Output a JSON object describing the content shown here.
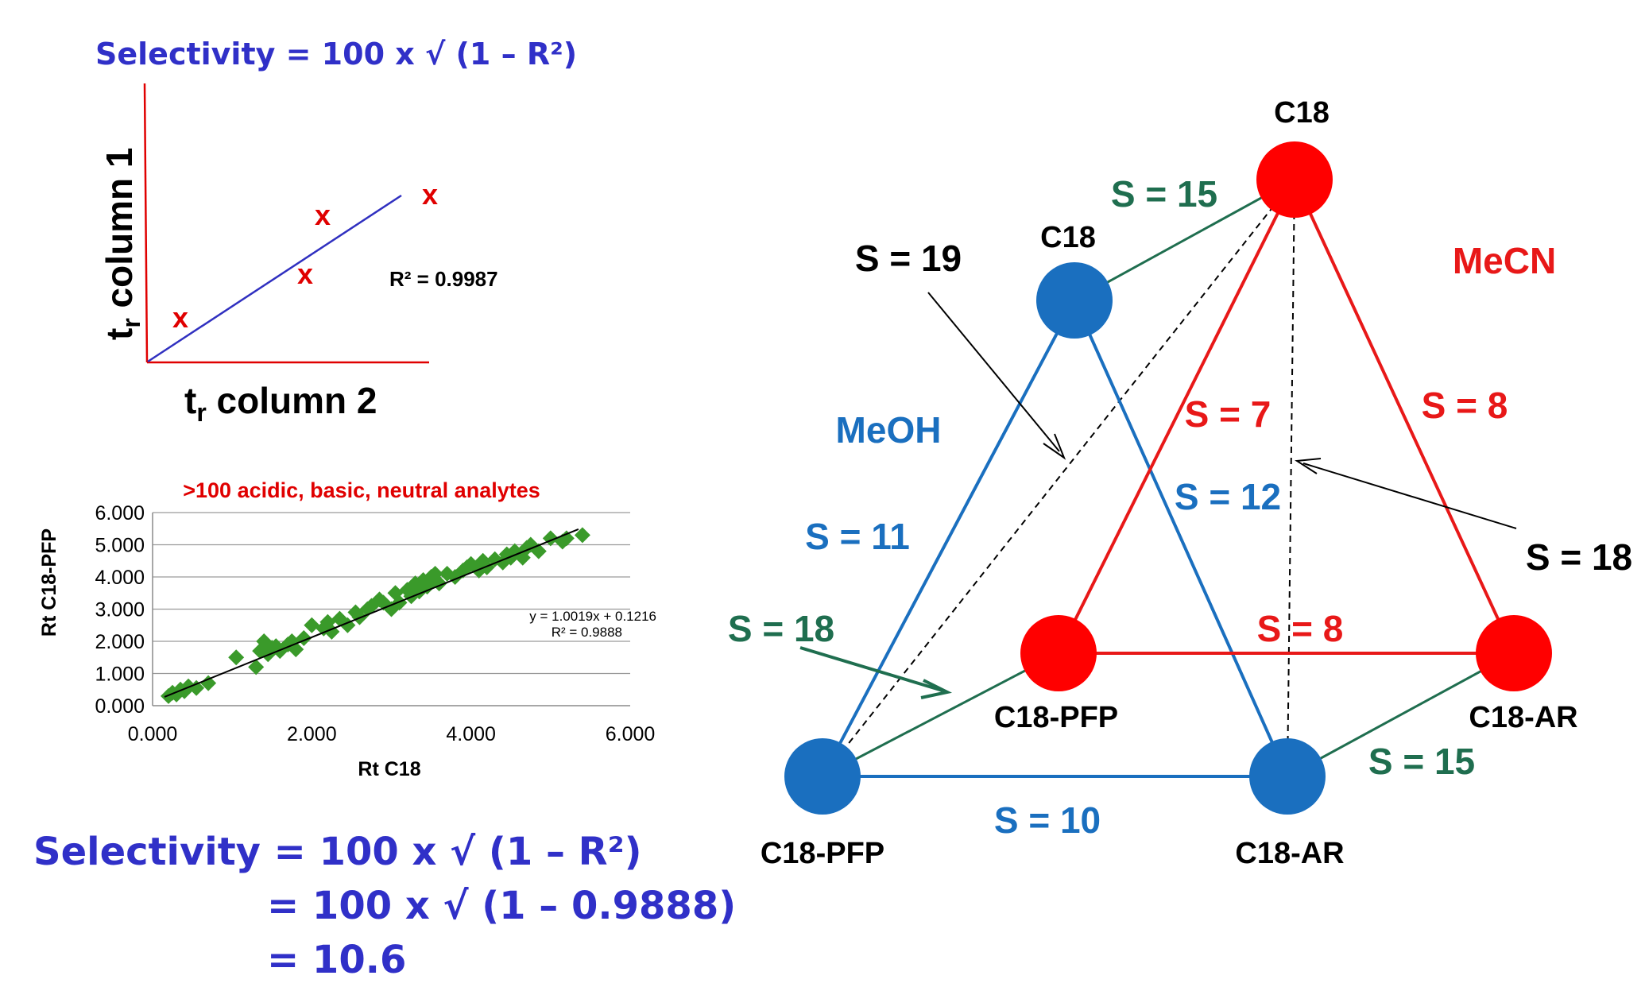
{
  "formulas": {
    "top": "Selectivity = 100 x √ (1 – R²)",
    "bottom_line1": "Selectivity = 100 x √ (1 – R²)",
    "bottom_line2": "= 100 x √ (1 – 0.9888)",
    "bottom_line3": "= 10.6"
  },
  "schematic": {
    "ylabel_main": "t",
    "ylabel_sub": "r",
    "ylabel_rest": " column 1",
    "xlabel_main": "t",
    "xlabel_sub": "r",
    "xlabel_rest": " column 2",
    "r2_label": "R² = 0.9987",
    "marker": "x",
    "colors": {
      "axis": "#e00000",
      "fit": "#3030c0",
      "marker": "#e00000"
    }
  },
  "chart_data": {
    "type": "scatter",
    "title": ">100 acidic, basic, neutral analytes",
    "xlabel": "Rt C18",
    "ylabel": "Rt C18-PFP",
    "xlim": [
      0,
      6
    ],
    "ylim": [
      0,
      6
    ],
    "xticks": [
      "0.000",
      "2.000",
      "4.000",
      "6.000"
    ],
    "yticks": [
      "0.000",
      "1.000",
      "2.000",
      "3.000",
      "4.000",
      "5.000",
      "6.000"
    ],
    "grid": "horizontal",
    "equation": "y = 1.0019x + 0.1216",
    "r2": "R² = 0.9888",
    "fit": {
      "slope": 1.0019,
      "intercept": 0.1216,
      "x_range": [
        0.15,
        5.35
      ]
    },
    "marker_color": "#3a9a2a",
    "points": [
      [
        0.2,
        0.3
      ],
      [
        0.25,
        0.4
      ],
      [
        0.3,
        0.35
      ],
      [
        0.35,
        0.5
      ],
      [
        0.4,
        0.45
      ],
      [
        0.45,
        0.6
      ],
      [
        0.55,
        0.55
      ],
      [
        0.7,
        0.7
      ],
      [
        1.05,
        1.5
      ],
      [
        1.3,
        1.2
      ],
      [
        1.35,
        1.7
      ],
      [
        1.4,
        2.0
      ],
      [
        1.45,
        1.6
      ],
      [
        1.5,
        1.8
      ],
      [
        1.55,
        1.85
      ],
      [
        1.6,
        1.7
      ],
      [
        1.7,
        1.9
      ],
      [
        1.75,
        2.0
      ],
      [
        1.8,
        1.75
      ],
      [
        1.9,
        2.1
      ],
      [
        2.0,
        2.5
      ],
      [
        2.15,
        2.4
      ],
      [
        2.2,
        2.6
      ],
      [
        2.25,
        2.3
      ],
      [
        2.35,
        2.7
      ],
      [
        2.45,
        2.5
      ],
      [
        2.55,
        2.9
      ],
      [
        2.6,
        2.75
      ],
      [
        2.7,
        3.0
      ],
      [
        2.75,
        3.1
      ],
      [
        2.85,
        3.3
      ],
      [
        2.9,
        3.2
      ],
      [
        3.0,
        3.0
      ],
      [
        3.05,
        3.5
      ],
      [
        3.1,
        3.2
      ],
      [
        3.2,
        3.6
      ],
      [
        3.25,
        3.4
      ],
      [
        3.3,
        3.8
      ],
      [
        3.35,
        3.55
      ],
      [
        3.4,
        3.9
      ],
      [
        3.45,
        3.7
      ],
      [
        3.5,
        4.0
      ],
      [
        3.55,
        4.1
      ],
      [
        3.6,
        3.8
      ],
      [
        3.7,
        4.1
      ],
      [
        3.8,
        4.0
      ],
      [
        3.9,
        4.2
      ],
      [
        3.95,
        4.3
      ],
      [
        4.0,
        4.4
      ],
      [
        4.1,
        4.2
      ],
      [
        4.15,
        4.5
      ],
      [
        4.2,
        4.3
      ],
      [
        4.3,
        4.55
      ],
      [
        4.4,
        4.45
      ],
      [
        4.45,
        4.7
      ],
      [
        4.5,
        4.6
      ],
      [
        4.55,
        4.8
      ],
      [
        4.65,
        4.6
      ],
      [
        4.7,
        4.9
      ],
      [
        4.75,
        5.0
      ],
      [
        4.85,
        4.8
      ],
      [
        5.0,
        5.2
      ],
      [
        5.15,
        5.1
      ],
      [
        5.2,
        5.2
      ],
      [
        5.4,
        5.3
      ]
    ]
  },
  "diagram": {
    "colors": {
      "meoh": "#1a6fbf",
      "mecn": "#e81818",
      "cross": "#1f6e4f",
      "dashed": "#000000"
    },
    "solvents": {
      "meoh": "MeOH",
      "mecn": "MeCN"
    },
    "nodes": {
      "blue_c18": "C18",
      "blue_pfp": "C18-PFP",
      "blue_ar": "C18-AR",
      "red_c18": "C18",
      "red_pfp": "C18-PFP",
      "red_ar": "C18-AR"
    },
    "labels": {
      "cross_c18": "S = 15",
      "cross_pfp": "S = 18",
      "cross_ar": "S = 15",
      "dash_c18pfp": "S = 19",
      "dash_c18ar": "S = 18",
      "blue_c18_pfp": "S = 11",
      "blue_c18_ar": "S = 12",
      "blue_pfp_ar": "S = 10",
      "red_c18_pfp": "S = 7",
      "red_c18_ar": "S = 8",
      "red_pfp_ar": "S = 8"
    }
  }
}
